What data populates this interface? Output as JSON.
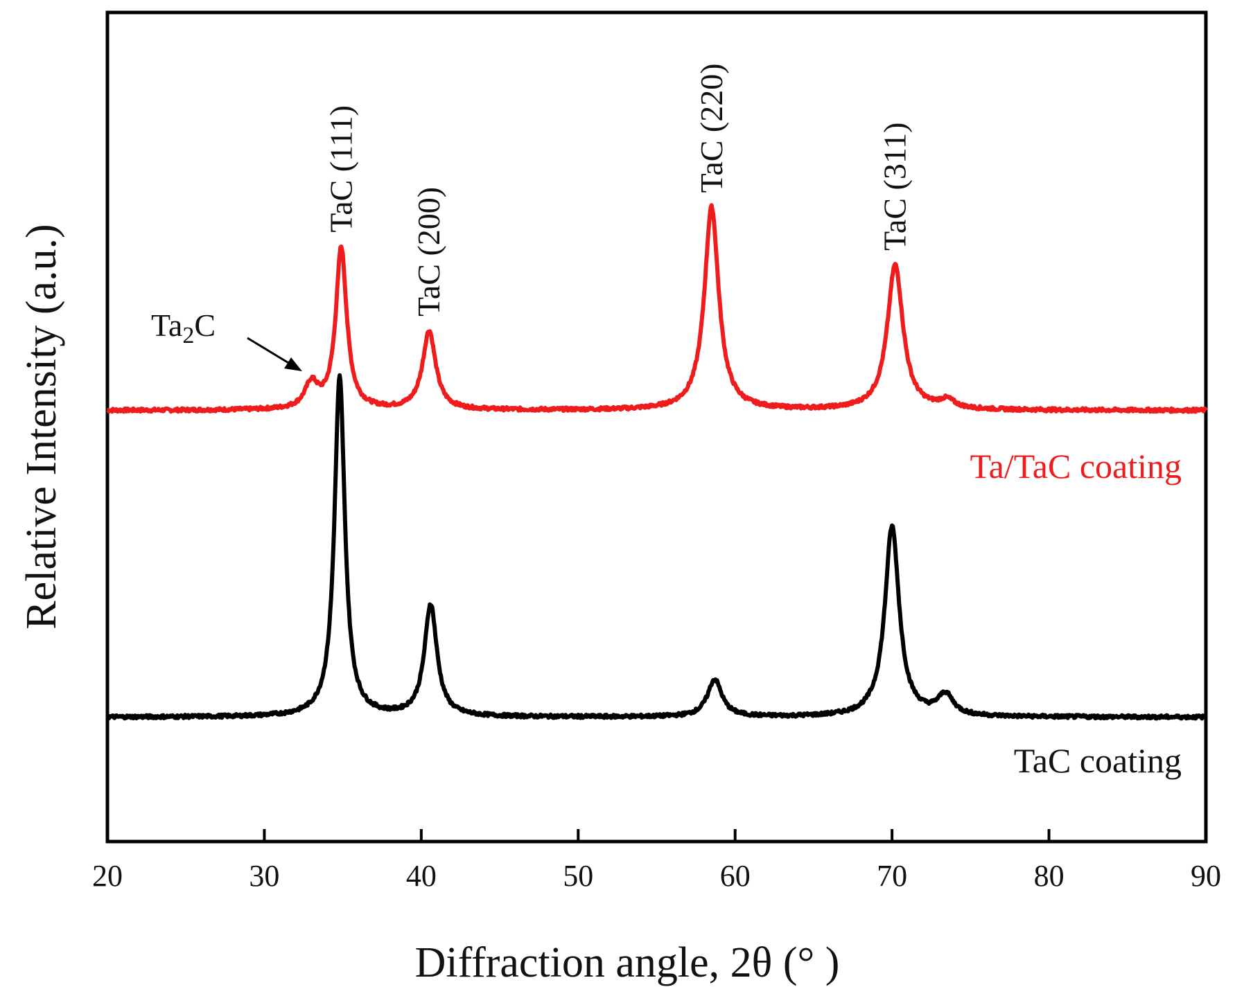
{
  "chart_data": {
    "type": "line",
    "xlabel": "Diffraction angle, 2θ (° )",
    "ylabel": "Relative Intensity (a.u.)",
    "xlim": [
      20,
      90
    ],
    "xticks": [
      20,
      30,
      40,
      50,
      60,
      70,
      80,
      90
    ],
    "yticks": "none",
    "grid": false,
    "series": [
      {
        "name": "Ta/TaC coating",
        "color": "#ee1c1c",
        "baseline": 0.52,
        "peaks": [
          {
            "x": 33.0,
            "height": 0.03,
            "width": 0.5
          },
          {
            "x": 34.9,
            "height": 0.195,
            "width": 0.42
          },
          {
            "x": 40.5,
            "height": 0.095,
            "width": 0.5
          },
          {
            "x": 58.5,
            "height": 0.245,
            "width": 0.55
          },
          {
            "x": 70.2,
            "height": 0.175,
            "width": 0.6
          },
          {
            "x": 73.5,
            "height": 0.01,
            "width": 0.6
          }
        ]
      },
      {
        "name": "TaC coating",
        "color": "#000000",
        "baseline": 0.15,
        "peaks": [
          {
            "x": 34.8,
            "height": 0.41,
            "width": 0.4
          },
          {
            "x": 40.6,
            "height": 0.135,
            "width": 0.48
          },
          {
            "x": 58.7,
            "height": 0.045,
            "width": 0.55
          },
          {
            "x": 70.0,
            "height": 0.23,
            "width": 0.55
          },
          {
            "x": 73.4,
            "height": 0.025,
            "width": 0.6
          }
        ]
      }
    ],
    "annotations": [
      {
        "text": "TaC (111)",
        "x": 34.9,
        "series": "Ta/TaC coating",
        "rotation": "vertical"
      },
      {
        "text": "TaC (200)",
        "x": 40.5,
        "series": "Ta/TaC coating",
        "rotation": "vertical"
      },
      {
        "text": "TaC (220)",
        "x": 58.5,
        "series": "Ta/TaC coating",
        "rotation": "vertical"
      },
      {
        "text": "TaC (311)",
        "x": 70.2,
        "series": "Ta/TaC coating",
        "rotation": "vertical"
      }
    ],
    "ta2c_label": {
      "main": "Ta",
      "sub": "2",
      "tail": "C",
      "x": 33.0,
      "arrow": true
    },
    "series_labels": [
      "Ta/TaC coating",
      "TaC coating"
    ]
  }
}
